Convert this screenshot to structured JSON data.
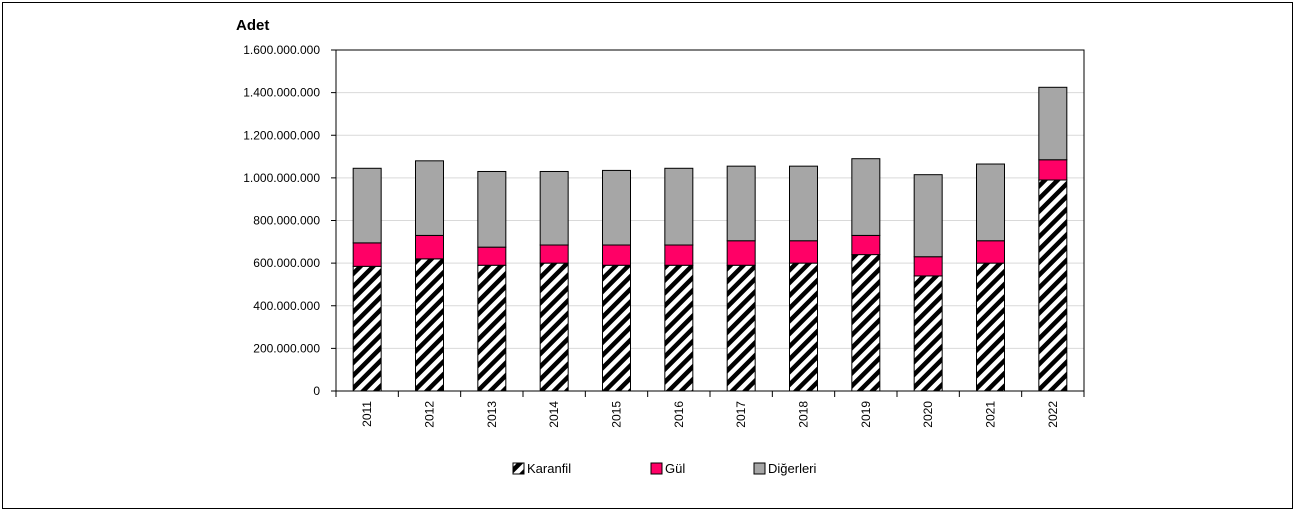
{
  "chart_data": {
    "type": "bar",
    "stacked": true,
    "title": "",
    "xlabel": "",
    "ylabel": "Adet",
    "ylim": [
      0,
      1600000000
    ],
    "yticks": [
      0,
      200000000,
      400000000,
      600000000,
      800000000,
      1000000000,
      1200000000,
      1400000000,
      1600000000
    ],
    "ytick_labels": [
      "0",
      "200.000.000",
      "400.000.000",
      "600.000.000",
      "800.000.000",
      "1.000.000.000",
      "1.200.000.000",
      "1.400.000.000",
      "1.600.000.000"
    ],
    "categories": [
      "2011",
      "2012",
      "2013",
      "2014",
      "2015",
      "2016",
      "2017",
      "2018",
      "2019",
      "2020",
      "2021",
      "2022"
    ],
    "grid": true,
    "legend_position": "bottom",
    "series": [
      {
        "name": "Karanfil",
        "pattern": "diagonal-hatch",
        "color": "#000000",
        "values": [
          585000000,
          620000000,
          590000000,
          600000000,
          590000000,
          590000000,
          590000000,
          600000000,
          640000000,
          540000000,
          600000000,
          990000000
        ]
      },
      {
        "name": "Gül",
        "color": "#ff0066",
        "values": [
          110000000,
          110000000,
          85000000,
          85000000,
          95000000,
          95000000,
          115000000,
          105000000,
          90000000,
          90000000,
          105000000,
          95000000
        ]
      },
      {
        "name": "Diğerleri",
        "color": "#a6a6a6",
        "values": [
          350000000,
          350000000,
          355000000,
          345000000,
          350000000,
          360000000,
          350000000,
          350000000,
          360000000,
          385000000,
          360000000,
          340000000
        ]
      }
    ]
  }
}
